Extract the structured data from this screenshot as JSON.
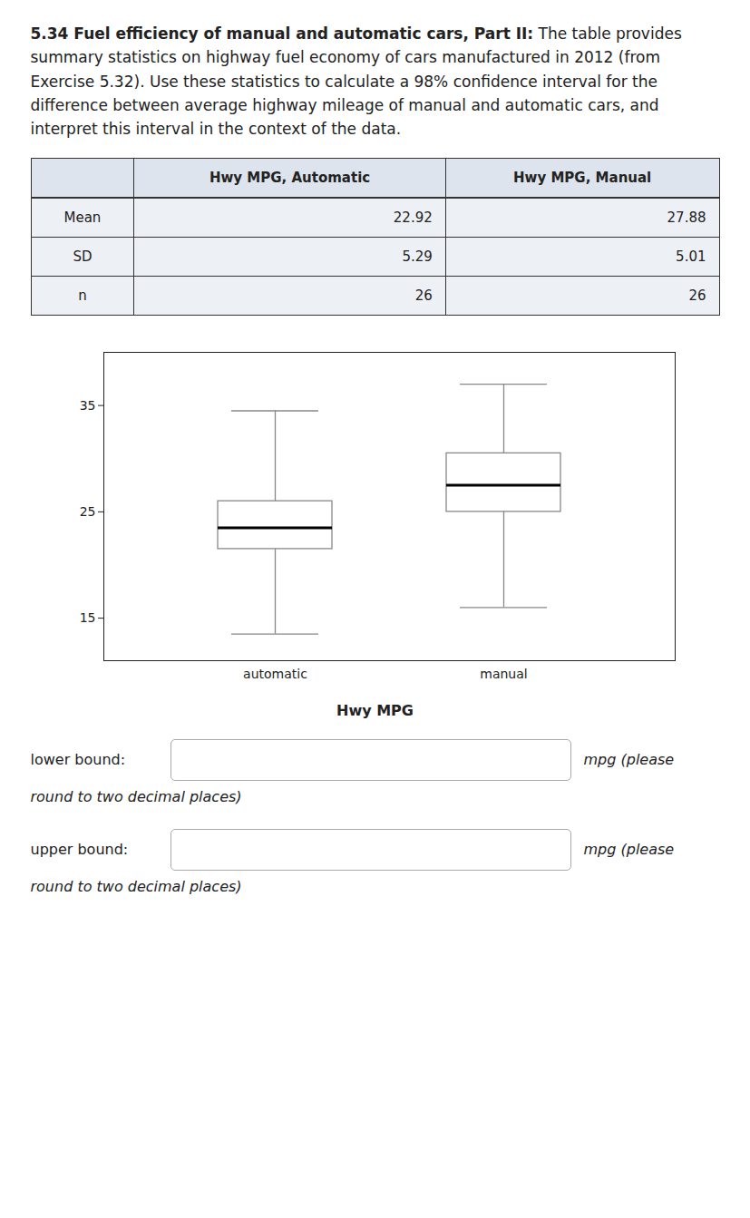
{
  "chart_data": {
    "type": "box",
    "title": "5.34 Fuel efficiency of manual and automatic cars, Part II:",
    "subtitle": "The table provides summary statistics on highway fuel economy of cars manufactured in 2012 (from Exercise 5.32). Use these statistics to calculate a 98% confidence interval for the difference between average highway mileage of manual and automatic cars, and interpret this interval in the context of the data.",
    "table": {
      "headers": [
        "Hwy MPG, Automatic",
        "Hwy MPG, Manual"
      ],
      "rows": [
        [
          "Mean",
          "22.92",
          "27.88"
        ],
        [
          "SD",
          "5.29",
          "5.01"
        ],
        [
          "n",
          "26",
          "26"
        ]
      ]
    },
    "xlabel": "Hwy MPG",
    "categories": [
      "automatic",
      "manual"
    ],
    "whisker_low": [
      13.5,
      16.0
    ],
    "q1": [
      21.5,
      25.0
    ],
    "median": [
      23.5,
      27.5
    ],
    "q3": [
      26.0,
      30.5
    ],
    "whisker_high": [
      34.5,
      37.0
    ],
    "ylim": [
      11,
      40
    ],
    "yticks": [
      15,
      25,
      35
    ],
    "annotations": [
      "lower bound:",
      "mpg (please",
      "round to two decimal places)",
      "upper bound:",
      "mpg (please",
      "round to two decimal places)"
    ]
  }
}
